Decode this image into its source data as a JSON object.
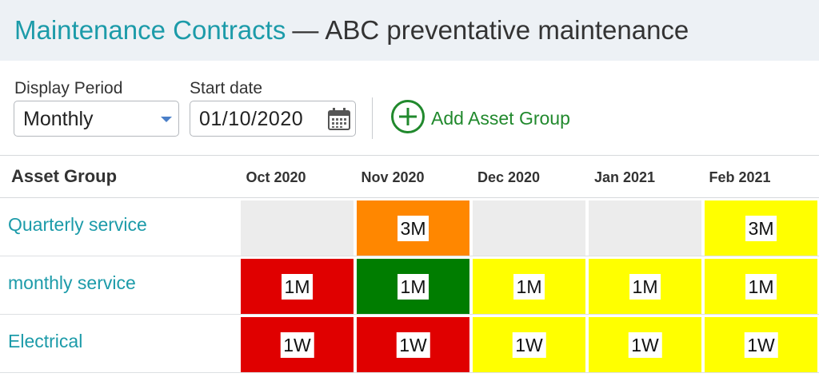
{
  "header": {
    "app_title": "Maintenance Contracts",
    "separator": "—",
    "page_title": "ABC preventative maintenance"
  },
  "controls": {
    "display_period": {
      "label": "Display Period",
      "value": "Monthly"
    },
    "start_date": {
      "label": "Start date",
      "value": "01/10/2020"
    },
    "add_asset_group": {
      "label": "Add Asset Group"
    }
  },
  "grid": {
    "asset_group_header": "Asset Group",
    "months": [
      "Oct 2020",
      "Nov 2020",
      "Dec 2020",
      "Jan 2021",
      "Feb 2021"
    ],
    "rows": [
      {
        "name": "Quarterly service",
        "cells": [
          {
            "label": "",
            "color": "#ececec"
          },
          {
            "label": "3M",
            "color": "#ff8700"
          },
          {
            "label": "",
            "color": "#ececec"
          },
          {
            "label": "",
            "color": "#ececec"
          },
          {
            "label": "3M",
            "color": "#ffff00"
          }
        ]
      },
      {
        "name": "monthly service",
        "cells": [
          {
            "label": "1M",
            "color": "#e00000"
          },
          {
            "label": "1M",
            "color": "#007d00"
          },
          {
            "label": "1M",
            "color": "#ffff00"
          },
          {
            "label": "1M",
            "color": "#ffff00"
          },
          {
            "label": "1M",
            "color": "#ffff00"
          }
        ]
      },
      {
        "name": "Electrical",
        "cells": [
          {
            "label": "1W",
            "color": "#e00000"
          },
          {
            "label": "1W",
            "color": "#e00000"
          },
          {
            "label": "1W",
            "color": "#ffff00"
          },
          {
            "label": "1W",
            "color": "#ffff00"
          },
          {
            "label": "1W",
            "color": "#ffff00"
          }
        ]
      }
    ]
  },
  "colors": {
    "accent_teal": "#1c9ba9",
    "accent_green": "#21892d",
    "header_bg": "#edf1f5"
  }
}
